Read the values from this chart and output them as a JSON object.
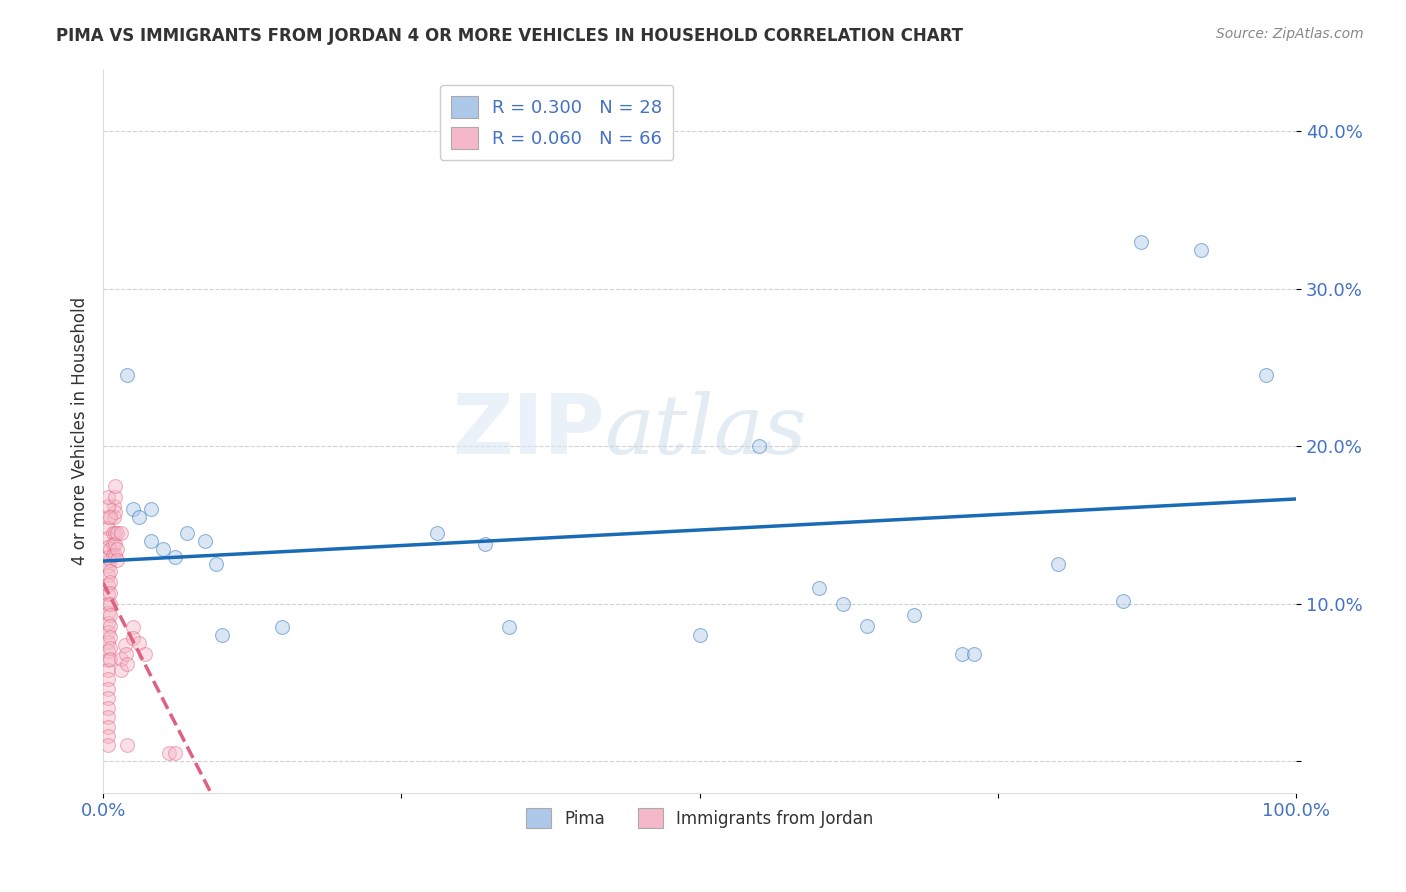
{
  "title": "PIMA VS IMMIGRANTS FROM JORDAN 4 OR MORE VEHICLES IN HOUSEHOLD CORRELATION CHART",
  "source": "Source: ZipAtlas.com",
  "ylabel": "4 or more Vehicles in Household",
  "watermark_part1": "ZIP",
  "watermark_part2": "atlas",
  "legend_entries": [
    {
      "label": "R = 0.300   N = 28",
      "color": "#adc8e8"
    },
    {
      "label": "R = 0.060   N = 66",
      "color": "#f5b8c8"
    }
  ],
  "legend_bottom": [
    {
      "label": "Pima",
      "color": "#adc8e8"
    },
    {
      "label": "Immigrants from Jordan",
      "color": "#f5b8c8"
    }
  ],
  "pima_points": [
    [
      0.02,
      0.245
    ],
    [
      0.025,
      0.16
    ],
    [
      0.03,
      0.155
    ],
    [
      0.04,
      0.16
    ],
    [
      0.04,
      0.14
    ],
    [
      0.05,
      0.135
    ],
    [
      0.06,
      0.13
    ],
    [
      0.07,
      0.145
    ],
    [
      0.085,
      0.14
    ],
    [
      0.095,
      0.125
    ],
    [
      0.1,
      0.08
    ],
    [
      0.15,
      0.085
    ],
    [
      0.28,
      0.145
    ],
    [
      0.32,
      0.138
    ],
    [
      0.34,
      0.085
    ],
    [
      0.5,
      0.08
    ],
    [
      0.55,
      0.2
    ],
    [
      0.6,
      0.11
    ],
    [
      0.62,
      0.1
    ],
    [
      0.64,
      0.086
    ],
    [
      0.68,
      0.093
    ],
    [
      0.72,
      0.068
    ],
    [
      0.73,
      0.068
    ],
    [
      0.8,
      0.125
    ],
    [
      0.855,
      0.102
    ],
    [
      0.87,
      0.33
    ],
    [
      0.92,
      0.325
    ],
    [
      0.975,
      0.245
    ]
  ],
  "jordan_points": [
    [
      0.004,
      0.155
    ],
    [
      0.004,
      0.148
    ],
    [
      0.004,
      0.142
    ],
    [
      0.004,
      0.136
    ],
    [
      0.004,
      0.13
    ],
    [
      0.004,
      0.124
    ],
    [
      0.004,
      0.118
    ],
    [
      0.004,
      0.112
    ],
    [
      0.004,
      0.106
    ],
    [
      0.004,
      0.1
    ],
    [
      0.004,
      0.094
    ],
    [
      0.004,
      0.088
    ],
    [
      0.004,
      0.082
    ],
    [
      0.004,
      0.076
    ],
    [
      0.004,
      0.07
    ],
    [
      0.004,
      0.064
    ],
    [
      0.004,
      0.058
    ],
    [
      0.004,
      0.052
    ],
    [
      0.004,
      0.046
    ],
    [
      0.004,
      0.04
    ],
    [
      0.004,
      0.034
    ],
    [
      0.004,
      0.028
    ],
    [
      0.004,
      0.022
    ],
    [
      0.004,
      0.016
    ],
    [
      0.006,
      0.135
    ],
    [
      0.006,
      0.128
    ],
    [
      0.006,
      0.121
    ],
    [
      0.006,
      0.114
    ],
    [
      0.006,
      0.107
    ],
    [
      0.006,
      0.1
    ],
    [
      0.006,
      0.093
    ],
    [
      0.006,
      0.086
    ],
    [
      0.006,
      0.079
    ],
    [
      0.006,
      0.072
    ],
    [
      0.006,
      0.065
    ],
    [
      0.008,
      0.145
    ],
    [
      0.008,
      0.138
    ],
    [
      0.008,
      0.131
    ],
    [
      0.009,
      0.162
    ],
    [
      0.009,
      0.155
    ],
    [
      0.01,
      0.158
    ],
    [
      0.01,
      0.145
    ],
    [
      0.01,
      0.138
    ],
    [
      0.01,
      0.131
    ],
    [
      0.012,
      0.135
    ],
    [
      0.012,
      0.128
    ],
    [
      0.015,
      0.065
    ],
    [
      0.015,
      0.058
    ],
    [
      0.018,
      0.074
    ],
    [
      0.019,
      0.068
    ],
    [
      0.02,
      0.062
    ],
    [
      0.025,
      0.085
    ],
    [
      0.025,
      0.078
    ],
    [
      0.03,
      0.075
    ],
    [
      0.035,
      0.068
    ],
    [
      0.004,
      0.01
    ],
    [
      0.02,
      0.01
    ],
    [
      0.055,
      0.005
    ],
    [
      0.06,
      0.005
    ],
    [
      0.004,
      0.162
    ],
    [
      0.004,
      0.168
    ],
    [
      0.006,
      0.155
    ],
    [
      0.01,
      0.168
    ],
    [
      0.01,
      0.175
    ],
    [
      0.012,
      0.145
    ],
    [
      0.015,
      0.145
    ]
  ],
  "pima_line_color": "#1a6bb5",
  "jordan_line_color": "#e06080",
  "xlim": [
    0.0,
    1.0
  ],
  "ylim": [
    -0.02,
    0.44
  ],
  "ytick_vals": [
    0.0,
    0.1,
    0.2,
    0.3,
    0.4
  ],
  "ytick_labels": [
    "",
    "10.0%",
    "20.0%",
    "30.0%",
    "40.0%"
  ],
  "xtick_vals": [
    0.0,
    0.25,
    0.5,
    0.75,
    1.0
  ],
  "xtick_labels": [
    "0.0%",
    "",
    "",
    "",
    "100.0%"
  ],
  "grid_color": "#cccccc",
  "bg_color": "#ffffff",
  "scatter_alpha": 0.45,
  "scatter_size": 100,
  "title_fontsize": 12,
  "tick_fontsize": 13
}
